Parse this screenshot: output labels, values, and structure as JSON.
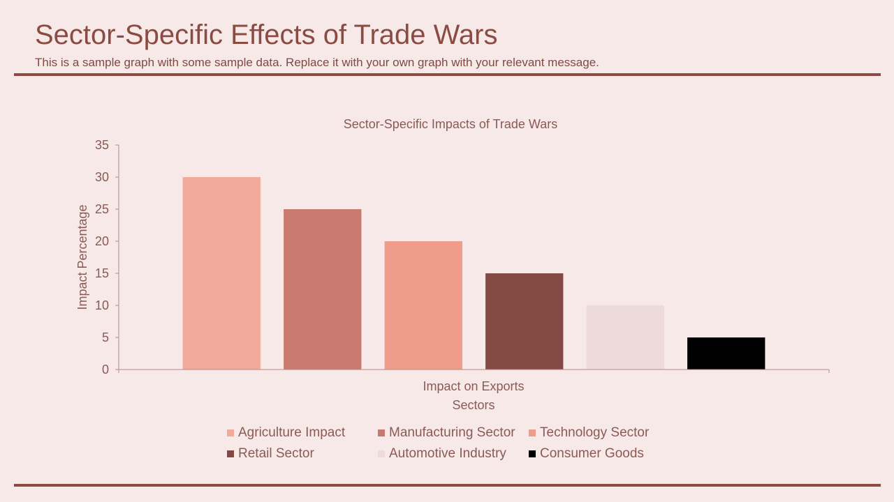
{
  "page": {
    "title": "Sector-Specific Effects of Trade Wars",
    "subtitle": "This is a sample graph with some sample data. Replace it with your own graph with your relevant message."
  },
  "colors": {
    "background": "#f7e9e8",
    "accent": "#8a4b43",
    "axis": "#b38a85"
  },
  "chart_data": {
    "type": "bar",
    "title": "Sector-Specific Impacts of Trade Wars",
    "categories": [
      "Impact on Exports"
    ],
    "xlabel": "Sectors",
    "ylabel": "Impact Percentage",
    "ylim": [
      0,
      35
    ],
    "yticks": [
      0,
      5,
      10,
      15,
      20,
      25,
      30,
      35
    ],
    "grid": false,
    "legend_position": "bottom",
    "series": [
      {
        "name": "Agriculture Impact",
        "values": [
          30
        ],
        "color": "#f3a99a"
      },
      {
        "name": "Manufacturing Sector",
        "values": [
          25
        ],
        "color": "#c97a70"
      },
      {
        "name": "Technology Sector",
        "values": [
          20
        ],
        "color": "#f09c8c"
      },
      {
        "name": "Retail Sector",
        "values": [
          15
        ],
        "color": "#844943"
      },
      {
        "name": "Automotive Industry",
        "values": [
          10
        ],
        "color": "#eddbd9"
      },
      {
        "name": "Consumer Goods",
        "values": [
          5
        ],
        "color": "#000000"
      }
    ]
  }
}
